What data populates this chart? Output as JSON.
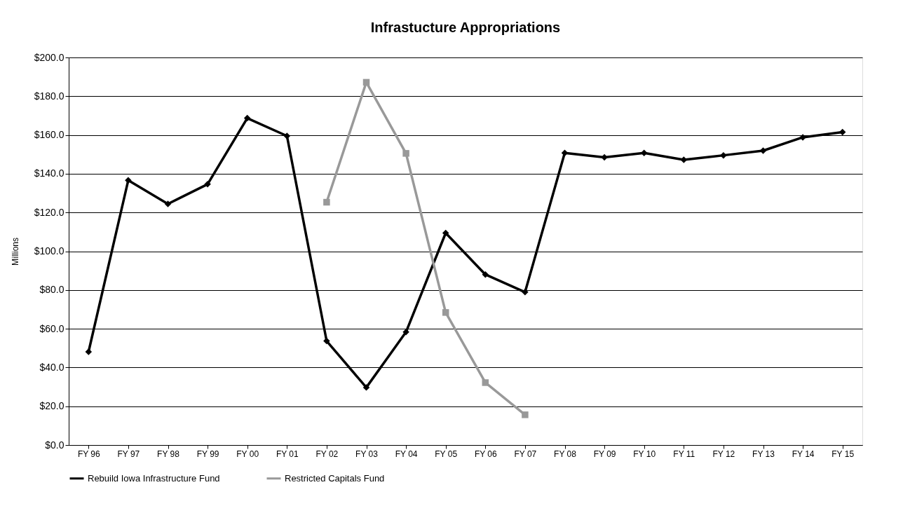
{
  "chart_data": {
    "type": "line",
    "title": "Infrastucture Appropriations",
    "ylabel": "Millions",
    "categories": [
      "FY 96",
      "FY 97",
      "FY 98",
      "FY 99",
      "FY 00",
      "FY 01",
      "FY 02",
      "FY 03",
      "FY 04",
      "FY 05",
      "FY 06",
      "FY 07",
      "FY 08",
      "FY 09",
      "FY 10",
      "FY 11",
      "FY 12",
      "FY 13",
      "FY 14",
      "FY 15"
    ],
    "series": [
      {
        "name": "Rebuild Iowa Infrastructure Fund",
        "color": "#000000",
        "marker": "diamond",
        "values": [
          48.1,
          136.6,
          124.4,
          134.6,
          168.7,
          159.5,
          53.7,
          29.7,
          58.3,
          109.4,
          88.0,
          78.9,
          150.7,
          148.5,
          150.7,
          147.2,
          149.5,
          151.9,
          158.8,
          161.5
        ]
      },
      {
        "name": "Restricted Capitals Fund",
        "color": "#999999",
        "marker": "square",
        "values": [
          null,
          null,
          null,
          null,
          null,
          null,
          125.3,
          187.2,
          150.5,
          68.4,
          32.2,
          15.6,
          null,
          null,
          null,
          null,
          null,
          null,
          null,
          null
        ]
      }
    ],
    "ylim": [
      0,
      200
    ],
    "yticks": [
      {
        "value": 0,
        "label": "$0.0"
      },
      {
        "value": 20,
        "label": "$20.0"
      },
      {
        "value": 40,
        "label": "$40.0"
      },
      {
        "value": 60,
        "label": "$60.0"
      },
      {
        "value": 80,
        "label": "$80.0"
      },
      {
        "value": 100,
        "label": "$100.0"
      },
      {
        "value": 120,
        "label": "$120.0"
      },
      {
        "value": 140,
        "label": "$140.0"
      },
      {
        "value": 160,
        "label": "$160.0"
      },
      {
        "value": 180,
        "label": "$180.0"
      },
      {
        "value": 200,
        "label": "$200.0"
      }
    ],
    "grid": "y",
    "legend": "bottom",
    "line_style": "solid"
  }
}
